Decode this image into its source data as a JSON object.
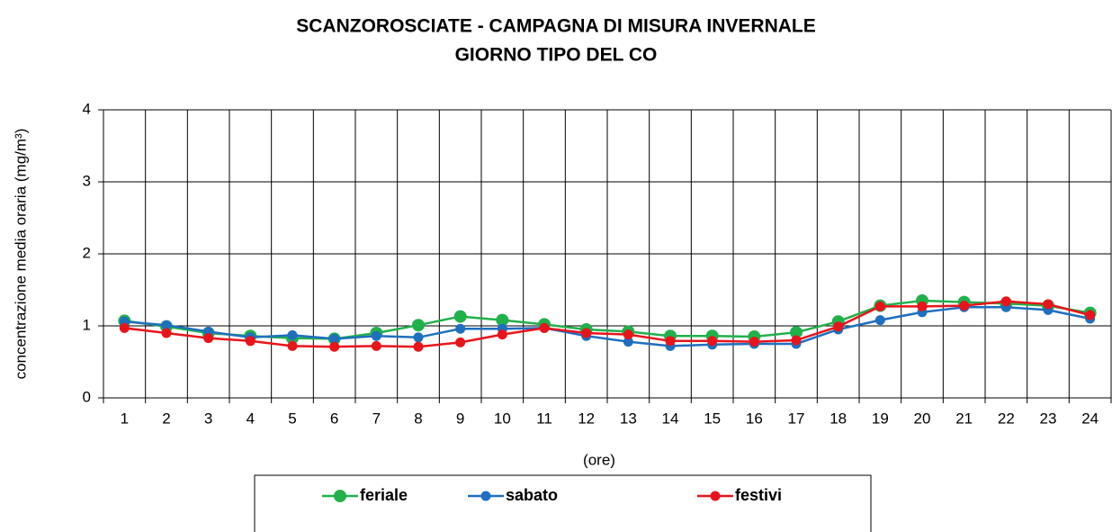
{
  "chart_data": {
    "type": "line",
    "title": [
      "SCANZOROSCIATE - CAMPAGNA DI MISURA INVERNALE",
      "GIORNO TIPO DEL CO"
    ],
    "y_label": "concentrazione media oraria (mg/m³)",
    "x_label": "(ore)",
    "categories": [
      "1",
      "2",
      "3",
      "4",
      "5",
      "6",
      "7",
      "8",
      "9",
      "10",
      "11",
      "12",
      "13",
      "14",
      "15",
      "16",
      "17",
      "18",
      "19",
      "20",
      "21",
      "22",
      "23",
      "24"
    ],
    "series": [
      {
        "name": "feriale",
        "color": "#22b04b",
        "values": [
          1.07,
          0.99,
          0.9,
          0.86,
          0.83,
          0.82,
          0.9,
          1.01,
          1.13,
          1.08,
          1.02,
          0.95,
          0.92,
          0.86,
          0.86,
          0.85,
          0.91,
          1.06,
          1.28,
          1.35,
          1.33,
          1.31,
          1.28,
          1.18
        ]
      },
      {
        "name": "sabato",
        "color": "#1f6fbf",
        "values": [
          1.06,
          1.01,
          0.92,
          0.84,
          0.87,
          0.82,
          0.86,
          0.84,
          0.96,
          0.96,
          0.97,
          0.86,
          0.78,
          0.72,
          0.74,
          0.75,
          0.75,
          0.95,
          1.08,
          1.19,
          1.26,
          1.26,
          1.22,
          1.1
        ]
      },
      {
        "name": "festivi",
        "color": "#e8141b",
        "values": [
          0.97,
          0.9,
          0.83,
          0.79,
          0.72,
          0.71,
          0.72,
          0.71,
          0.77,
          0.88,
          0.97,
          0.9,
          0.88,
          0.79,
          0.79,
          0.78,
          0.8,
          0.99,
          1.27,
          1.27,
          1.28,
          1.34,
          1.3,
          1.15
        ]
      }
    ],
    "ylim": [
      0,
      4
    ],
    "yticks": [
      0,
      1,
      2,
      3,
      4
    ],
    "grid": true,
    "legend": "bottom"
  }
}
